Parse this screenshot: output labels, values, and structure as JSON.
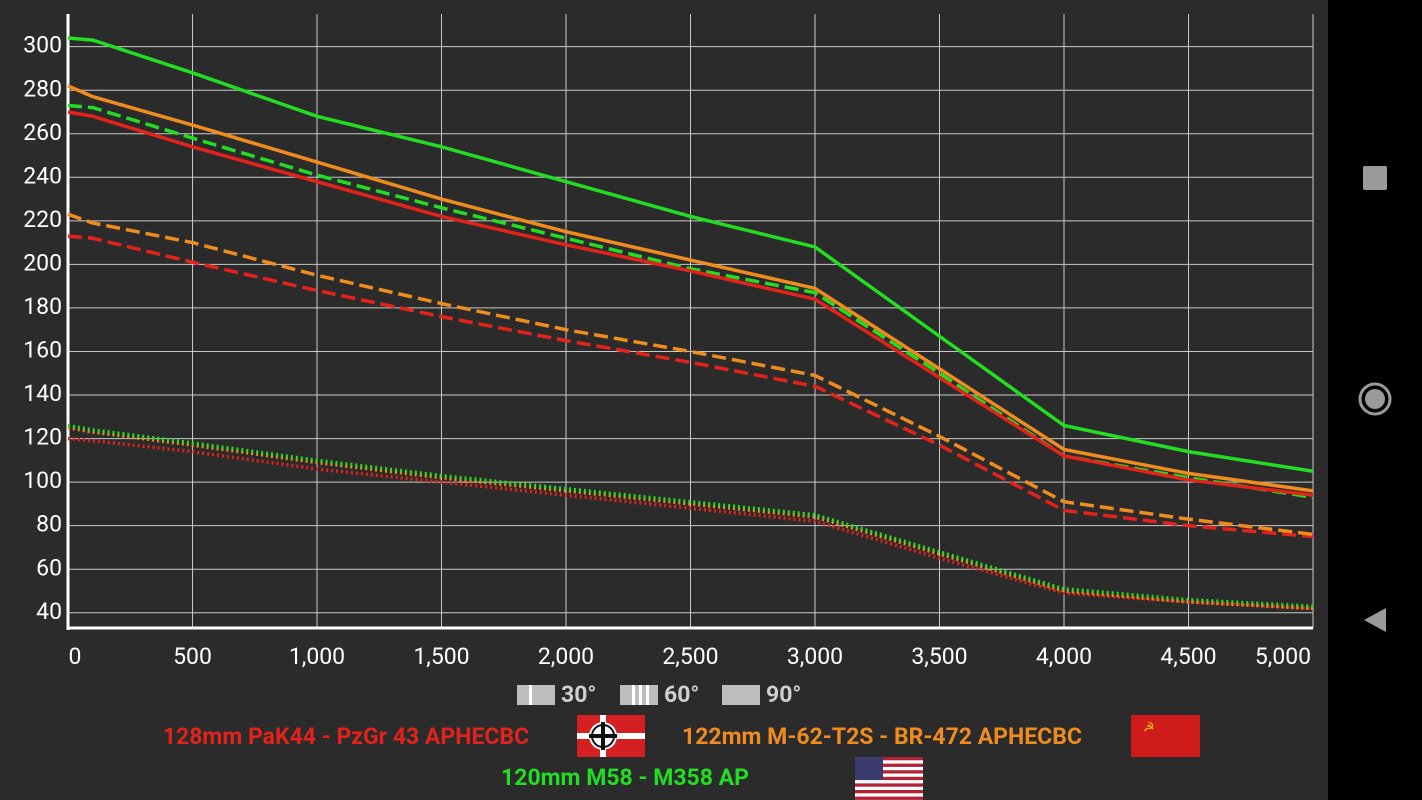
{
  "chart_data": {
    "type": "line",
    "x": [
      0,
      100,
      500,
      1000,
      1500,
      2000,
      2500,
      3000,
      3500,
      4000,
      4500,
      5000
    ],
    "xlim": [
      0,
      5000
    ],
    "ylim": [
      33,
      315
    ],
    "xticks": [
      0,
      500,
      {
        "value": 1000,
        "label": "1,000"
      },
      {
        "value": 1500,
        "label": "1,500"
      },
      {
        "value": 2000,
        "label": "2,000"
      },
      {
        "value": 2500,
        "label": "2,500"
      },
      {
        "value": 3000,
        "label": "3,000"
      },
      {
        "value": 3500,
        "label": "3,500"
      },
      {
        "value": 4000,
        "label": "4,000"
      },
      {
        "value": 4500,
        "label": "4,500"
      },
      {
        "value": 5000,
        "label": "5,000"
      }
    ],
    "yticks": [
      40,
      60,
      80,
      100,
      120,
      140,
      160,
      180,
      200,
      220,
      240,
      260,
      280,
      300
    ],
    "grid": true,
    "angles": [
      {
        "label": "30°",
        "style": "dotted"
      },
      {
        "label": "60°",
        "style": "dashed"
      },
      {
        "label": "90°",
        "style": "solid"
      }
    ],
    "guns": [
      {
        "name": "128mm PaK44 - PzGr 43 APHECBC",
        "color": "#e3221c",
        "series": [
          {
            "values": [
              120,
              119,
              114,
              106,
              100,
              94,
              88,
              82,
              65,
              49,
              45,
              42
            ]
          },
          {
            "values": [
              213,
              212,
              201,
              188,
              176,
              165,
              155,
              144,
              117,
              87,
              80,
              75
            ]
          },
          {
            "values": [
              270,
              268,
              254,
              238,
              222,
              209,
              197,
              184,
              148,
              112,
              101,
              94
            ]
          }
        ]
      },
      {
        "name": "122mm M-62-T2S - BR-472 APHECBC",
        "color": "#f08c1e",
        "series": [
          {
            "values": [
              125,
              123,
              117,
              109,
              102,
              96,
              90,
              84,
              67,
              50,
              45,
              42
            ]
          },
          {
            "values": [
              223,
              219,
              210,
              195,
              182,
              170,
              160,
              149,
              121,
              91,
              83,
              76
            ]
          },
          {
            "values": [
              282,
              277,
              264,
              247,
              230,
              215,
              202,
              189,
              152,
              115,
              104,
              96
            ]
          }
        ]
      },
      {
        "name": "120mm M58 - M358 AP",
        "color": "#22dd22",
        "series": [
          {
            "values": [
              126,
              124,
              118,
              110,
              103,
              97,
              91,
              85,
              68,
              51,
              46,
              43
            ]
          },
          {
            "values": [
              273,
              272,
              258,
              241,
              226,
              212,
              198,
              187,
              150,
              112,
              102,
              93
            ]
          },
          {
            "values": [
              304,
              303,
              288,
              268,
              254,
              238,
              222,
              208,
              167,
              126,
              114,
              105
            ]
          }
        ]
      }
    ]
  }
}
